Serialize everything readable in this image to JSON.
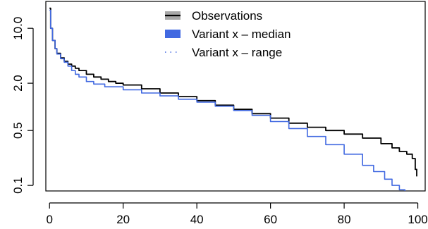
{
  "chart_data": {
    "type": "line",
    "title": "",
    "xlabel": "",
    "ylabel": "",
    "x_range": [
      -1,
      102
    ],
    "y_range": [
      0.085,
      22
    ],
    "y_log": true,
    "grid": false,
    "legend_position": "top-center",
    "x_ticks": [
      {
        "value": 0,
        "label": "0"
      },
      {
        "value": 20,
        "label": "20"
      },
      {
        "value": 40,
        "label": "40"
      },
      {
        "value": 60,
        "label": "60"
      },
      {
        "value": 80,
        "label": "80"
      },
      {
        "value": 100,
        "label": "100"
      }
    ],
    "y_ticks": [
      {
        "value": 0.1,
        "label": "0.1"
      },
      {
        "value": 0.5,
        "label": "0.5"
      },
      {
        "value": 2.0,
        "label": "2.0"
      },
      {
        "value": 10.0,
        "label": "10.0"
      }
    ],
    "legend": [
      {
        "label": "Observations",
        "color": "#000000",
        "style": "solid"
      },
      {
        "label": "Variant x – median",
        "color": "#4169e1",
        "style": "solid"
      },
      {
        "label": "Variant x – range",
        "color": "#4169e1",
        "style": "dotted"
      }
    ],
    "series": [
      {
        "color": "#000000",
        "x": [
          0,
          0.3,
          0.8,
          1.5,
          2,
          3,
          4,
          5,
          6,
          7,
          8,
          10,
          12,
          14,
          16,
          18,
          20,
          25,
          30,
          35,
          40,
          45,
          50,
          55,
          60,
          65,
          70,
          75,
          80,
          85,
          90,
          93,
          95,
          97,
          98.5,
          99.3,
          99.7
        ],
        "y": [
          18,
          10,
          7,
          5.5,
          4.8,
          4.2,
          3.8,
          3.5,
          3.3,
          3.1,
          2.9,
          2.6,
          2.4,
          2.25,
          2.1,
          2.0,
          1.9,
          1.7,
          1.5,
          1.35,
          1.2,
          1.05,
          0.93,
          0.82,
          0.72,
          0.62,
          0.55,
          0.5,
          0.45,
          0.4,
          0.34,
          0.3,
          0.27,
          0.25,
          0.22,
          0.16,
          0.13
        ]
      },
      {
        "color": "#4169e1",
        "x": [
          0,
          0.3,
          0.8,
          1.5,
          2,
          3,
          4,
          5,
          6,
          7,
          8,
          10,
          12,
          15,
          20,
          25,
          30,
          35,
          40,
          45,
          50,
          55,
          60,
          65,
          70,
          75,
          80,
          85,
          88,
          91,
          93,
          95,
          96.5
        ],
        "y": [
          17,
          10,
          7,
          5.5,
          4.7,
          4.1,
          3.7,
          3.3,
          2.9,
          2.6,
          2.4,
          2.1,
          1.95,
          1.8,
          1.65,
          1.5,
          1.38,
          1.25,
          1.15,
          1.02,
          0.9,
          0.78,
          0.65,
          0.53,
          0.42,
          0.33,
          0.25,
          0.18,
          0.15,
          0.12,
          0.1,
          0.088,
          0.075
        ]
      }
    ]
  }
}
